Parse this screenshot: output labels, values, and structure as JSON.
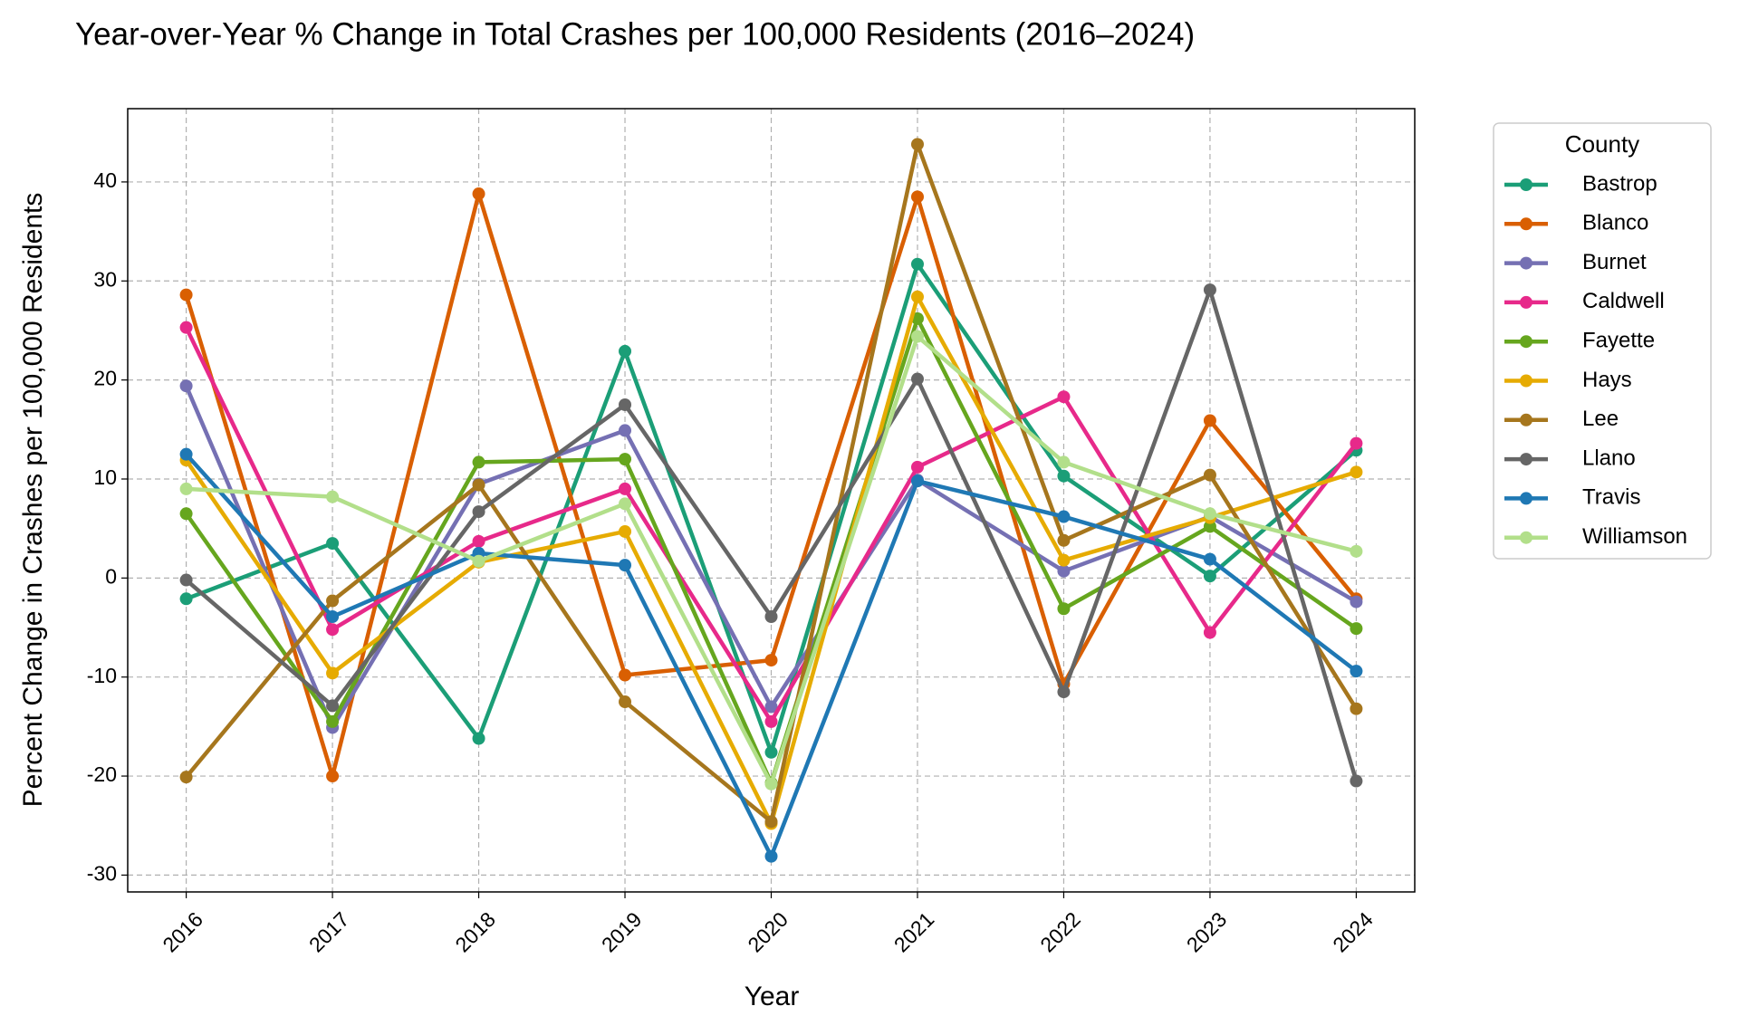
{
  "chart_data": {
    "type": "line",
    "title": "Year-over-Year % Change in Total Crashes per 100,000 Residents (2016–2024)",
    "x_label": "Year",
    "y_label": "Percent Change in Crashes per 100,000 Residents",
    "x": [
      2016,
      2017,
      2018,
      2019,
      2020,
      2021,
      2022,
      2023,
      2024
    ],
    "xlim": [
      2015.6,
      2024.4
    ],
    "xticks": [
      2016,
      2017,
      2018,
      2019,
      2020,
      2021,
      2022,
      2023,
      2024
    ],
    "ylim": [
      -31.7,
      47.4
    ],
    "yticks": [
      -30,
      -20,
      -10,
      0,
      10,
      20,
      30,
      40
    ],
    "grid": true,
    "legend_title": "County",
    "legend_position": "outside-right",
    "series": [
      {
        "name": "Bastrop",
        "color": "#1b9e77",
        "values": [
          -2.1,
          3.5,
          -16.2,
          22.9,
          -17.6,
          31.7,
          10.3,
          0.2,
          12.9
        ]
      },
      {
        "name": "Blanco",
        "color": "#d95f02",
        "values": [
          28.6,
          -20.0,
          38.8,
          -9.8,
          -8.3,
          38.5,
          -10.7,
          15.9,
          -2.1
        ]
      },
      {
        "name": "Burnet",
        "color": "#7570b3",
        "values": [
          19.4,
          -15.1,
          9.5,
          14.9,
          -13.0,
          9.9,
          0.7,
          6.2,
          -2.4
        ]
      },
      {
        "name": "Caldwell",
        "color": "#e7298a",
        "values": [
          25.3,
          -5.2,
          3.7,
          9.0,
          -14.5,
          11.2,
          18.3,
          -5.5,
          13.6
        ]
      },
      {
        "name": "Fayette",
        "color": "#66a61e",
        "values": [
          6.5,
          -14.5,
          11.7,
          12.0,
          -20.7,
          26.2,
          -3.1,
          5.2,
          -5.1
        ]
      },
      {
        "name": "Hays",
        "color": "#e6ab02",
        "values": [
          11.9,
          -9.6,
          1.6,
          4.7,
          -24.8,
          28.4,
          1.8,
          6.1,
          10.7
        ]
      },
      {
        "name": "Lee",
        "color": "#a6761d",
        "values": [
          -20.1,
          -2.3,
          9.4,
          -12.5,
          -24.6,
          43.8,
          3.8,
          10.4,
          -13.2
        ]
      },
      {
        "name": "Llano",
        "color": "#666666",
        "values": [
          -0.2,
          -12.9,
          6.7,
          17.5,
          -3.9,
          20.1,
          -11.5,
          29.1,
          -20.5
        ]
      },
      {
        "name": "Travis",
        "color": "#1f78b4",
        "values": [
          12.5,
          -3.9,
          2.5,
          1.3,
          -28.1,
          9.8,
          6.2,
          1.9,
          -9.4
        ]
      },
      {
        "name": "Williamson",
        "color": "#b2df8a",
        "values": [
          9.0,
          8.2,
          1.7,
          7.5,
          -20.8,
          24.4,
          11.7,
          6.5,
          2.7
        ]
      }
    ]
  }
}
